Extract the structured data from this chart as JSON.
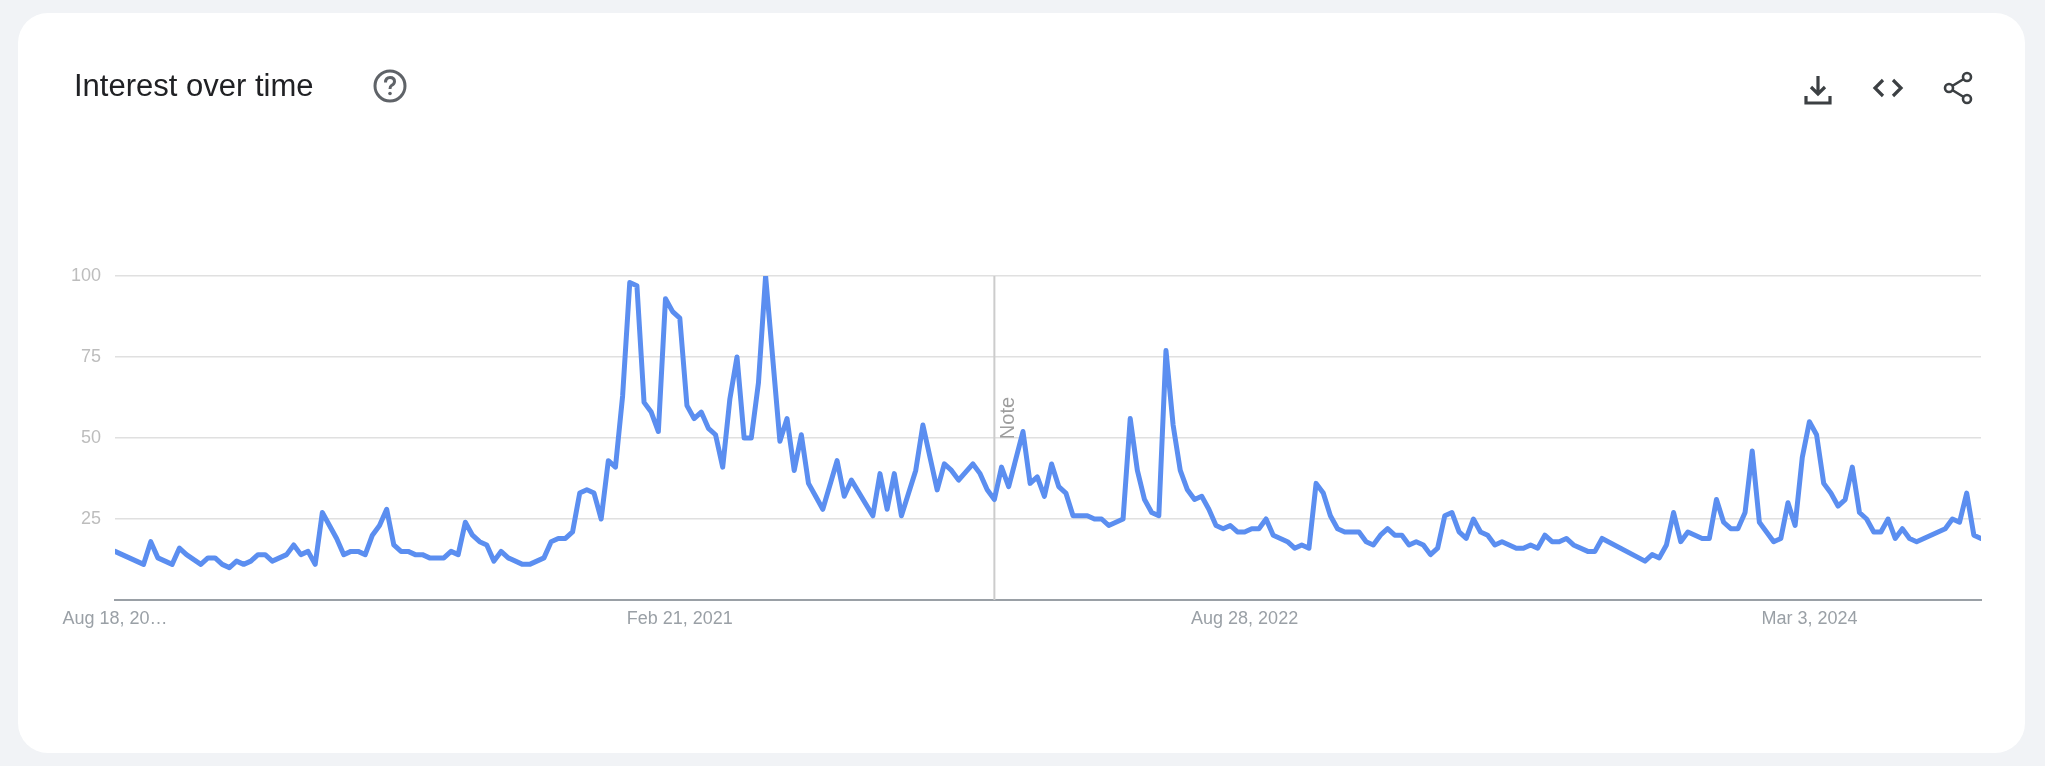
{
  "chart_data": {
    "type": "line",
    "title": "Interest over time",
    "color": "#5b8ef0",
    "marker": "none",
    "line_style": "solid",
    "grid": "y",
    "xlim": [
      "2019-08-18",
      "2024-08-18"
    ],
    "xticks": [
      {
        "value": "2019-08-18",
        "label": "Aug 18, 20…"
      },
      {
        "value": "2021-02-21",
        "label": "Feb 21, 2021"
      },
      {
        "value": "2022-08-28",
        "label": "Aug 28, 2022"
      },
      {
        "value": "2024-03-03",
        "label": "Mar 3, 2024"
      }
    ],
    "ylim": [
      0,
      100
    ],
    "yticks": [
      25,
      50,
      75,
      100
    ],
    "ref_lines": [
      {
        "axis": "x",
        "value": "2021-12-26",
        "label": "Note",
        "color": "#cccccc"
      }
    ],
    "x": [
      "2019-08-18",
      "2019-09-15",
      "2019-09-22",
      "2019-09-29",
      "2019-10-13",
      "2019-10-20",
      "2019-10-27",
      "2019-11-10",
      "2019-11-17",
      "2019-11-24",
      "2019-12-01",
      "2019-12-08",
      "2019-12-15",
      "2019-12-22",
      "2019-12-29",
      "2020-01-05",
      "2020-01-12",
      "2020-01-19",
      "2020-02-02",
      "2020-02-09",
      "2020-02-16",
      "2020-02-23",
      "2020-03-01",
      "2020-03-08",
      "2020-03-15",
      "2020-03-22",
      "2020-03-29",
      "2020-04-05",
      "2020-04-12",
      "2020-04-19",
      "2020-04-26",
      "2020-05-03",
      "2020-05-10",
      "2020-05-17",
      "2020-05-24",
      "2020-05-31",
      "2020-06-07",
      "2020-06-14",
      "2020-06-21",
      "2020-07-05",
      "2020-07-12",
      "2020-07-19",
      "2020-07-26",
      "2020-08-02",
      "2020-08-09",
      "2020-08-16",
      "2020-08-23",
      "2020-08-30",
      "2020-09-06",
      "2020-09-20",
      "2020-09-27",
      "2020-10-11",
      "2020-10-18",
      "2020-10-25",
      "2020-11-01",
      "2020-11-08",
      "2020-11-15",
      "2020-11-22",
      "2020-11-29",
      "2020-12-06",
      "2020-12-13",
      "2020-12-20",
      "2020-12-27",
      "2021-01-03",
      "2021-01-10",
      "2021-01-17",
      "2021-01-24",
      "2021-01-31",
      "2021-02-07",
      "2021-02-14",
      "2021-02-21",
      "2021-02-28",
      "2021-03-07",
      "2021-03-14",
      "2021-03-21",
      "2021-03-28",
      "2021-04-04",
      "2021-04-11",
      "2021-04-18",
      "2021-04-25",
      "2021-05-02",
      "2021-05-09",
      "2021-05-16",
      "2021-05-30",
      "2021-06-06",
      "2021-06-13",
      "2021-06-20",
      "2021-06-27",
      "2021-07-04",
      "2021-07-11",
      "2021-07-25",
      "2021-08-01",
      "2021-08-08",
      "2021-08-29",
      "2021-09-05",
      "2021-09-12",
      "2021-09-19",
      "2021-09-26",
      "2021-10-10",
      "2021-10-17",
      "2021-10-31",
      "2021-11-07",
      "2021-11-14",
      "2021-11-21",
      "2021-12-05",
      "2021-12-12",
      "2021-12-19",
      "2021-12-26",
      "2022-01-02",
      "2022-01-09",
      "2022-01-23",
      "2022-01-30",
      "2022-02-06",
      "2022-02-13",
      "2022-02-20",
      "2022-02-27",
      "2022-03-06",
      "2022-03-13",
      "2022-03-27",
      "2022-04-03",
      "2022-04-10",
      "2022-04-17",
      "2022-05-01",
      "2022-05-08",
      "2022-05-15",
      "2022-05-22",
      "2022-05-29",
      "2022-06-05",
      "2022-06-12",
      "2022-06-19",
      "2022-06-26",
      "2022-07-03",
      "2022-07-10",
      "2022-07-17",
      "2022-07-24",
      "2022-07-31",
      "2022-08-07",
      "2022-08-14",
      "2022-08-21",
      "2022-08-28",
      "2022-09-04",
      "2022-09-11",
      "2022-09-18",
      "2022-09-25",
      "2022-10-02",
      "2022-10-09",
      "2022-10-16",
      "2022-10-23",
      "2022-10-30",
      "2022-11-06",
      "2022-11-13",
      "2022-11-20",
      "2022-11-27",
      "2022-12-04",
      "2022-12-11",
      "2022-12-18",
      "2022-12-25",
      "2023-01-01",
      "2023-01-08",
      "2023-01-15",
      "2023-01-22",
      "2023-01-29",
      "2023-02-05",
      "2023-02-12",
      "2023-02-19",
      "2023-02-26",
      "2023-03-05",
      "2023-03-12",
      "2023-03-19",
      "2023-03-26",
      "2023-04-02",
      "2023-04-09",
      "2023-04-16",
      "2023-04-23",
      "2023-04-30",
      "2023-05-07",
      "2023-05-21",
      "2023-05-28",
      "2023-06-04",
      "2023-06-11",
      "2023-06-18",
      "2023-06-25",
      "2023-07-02",
      "2023-07-09",
      "2023-07-16",
      "2023-07-30",
      "2023-08-06",
      "2023-08-13",
      "2023-09-24",
      "2023-10-01",
      "2023-10-08",
      "2023-10-15",
      "2023-10-22",
      "2023-10-29",
      "2023-11-05",
      "2023-11-19",
      "2023-11-26",
      "2023-12-03",
      "2023-12-10",
      "2023-12-17",
      "2023-12-24",
      "2023-12-31",
      "2024-01-07",
      "2024-01-14",
      "2024-01-28",
      "2024-02-04",
      "2024-02-11",
      "2024-02-18",
      "2024-02-25",
      "2024-03-03",
      "2024-03-10",
      "2024-03-17",
      "2024-03-24",
      "2024-03-31",
      "2024-04-07",
      "2024-04-14",
      "2024-04-21",
      "2024-04-28",
      "2024-05-05",
      "2024-05-12",
      "2024-05-19",
      "2024-05-26",
      "2024-06-02",
      "2024-06-09",
      "2024-06-16",
      "2024-07-14",
      "2024-07-21",
      "2024-07-28",
      "2024-08-04",
      "2024-08-11",
      "2024-08-18"
    ],
    "values": [
      15,
      11,
      18,
      13,
      11,
      16,
      14,
      11,
      13,
      13,
      11,
      10,
      12,
      11,
      12,
      14,
      14,
      12,
      14,
      17,
      14,
      15,
      11,
      27,
      23,
      19,
      14,
      15,
      15,
      14,
      20,
      23,
      28,
      17,
      15,
      15,
      14,
      14,
      13,
      13,
      15,
      14,
      24,
      20,
      18,
      17,
      12,
      15,
      13,
      11,
      11,
      13,
      18,
      19,
      19,
      21,
      33,
      34,
      33,
      25,
      43,
      41,
      63,
      98,
      97,
      61,
      58,
      52,
      93,
      89,
      87,
      60,
      56,
      58,
      53,
      51,
      41,
      62,
      75,
      50,
      50,
      67,
      100,
      49,
      56,
      40,
      51,
      36,
      32,
      28,
      43,
      32,
      37,
      26,
      39,
      28,
      39,
      26,
      40,
      54,
      34,
      42,
      40,
      37,
      42,
      39,
      34,
      31,
      41,
      35,
      52,
      36,
      38,
      32,
      42,
      35,
      33,
      26,
      26,
      25,
      25,
      23,
      25,
      56,
      40,
      31,
      27,
      26,
      77,
      54,
      40,
      34,
      31,
      32,
      28,
      23,
      22,
      23,
      21,
      21,
      22,
      22,
      25,
      20,
      19,
      18,
      16,
      17,
      16,
      36,
      33,
      26,
      22,
      21,
      21,
      21,
      18,
      17,
      20,
      22,
      20,
      20,
      17,
      18,
      17,
      14,
      16,
      26,
      27,
      21,
      19,
      25,
      21,
      20,
      17,
      18,
      16,
      16,
      17,
      16,
      20,
      18,
      18,
      19,
      17,
      15,
      15,
      19,
      12,
      14,
      13,
      17,
      27,
      18,
      21,
      19,
      19,
      31,
      24,
      22,
      22,
      27,
      46,
      24,
      18,
      19,
      30,
      23,
      44,
      55,
      51,
      36,
      33,
      29,
      31,
      41,
      27,
      25,
      21,
      21,
      25,
      19,
      22,
      19,
      18,
      22,
      25,
      24,
      33,
      20,
      19
    ]
  }
}
